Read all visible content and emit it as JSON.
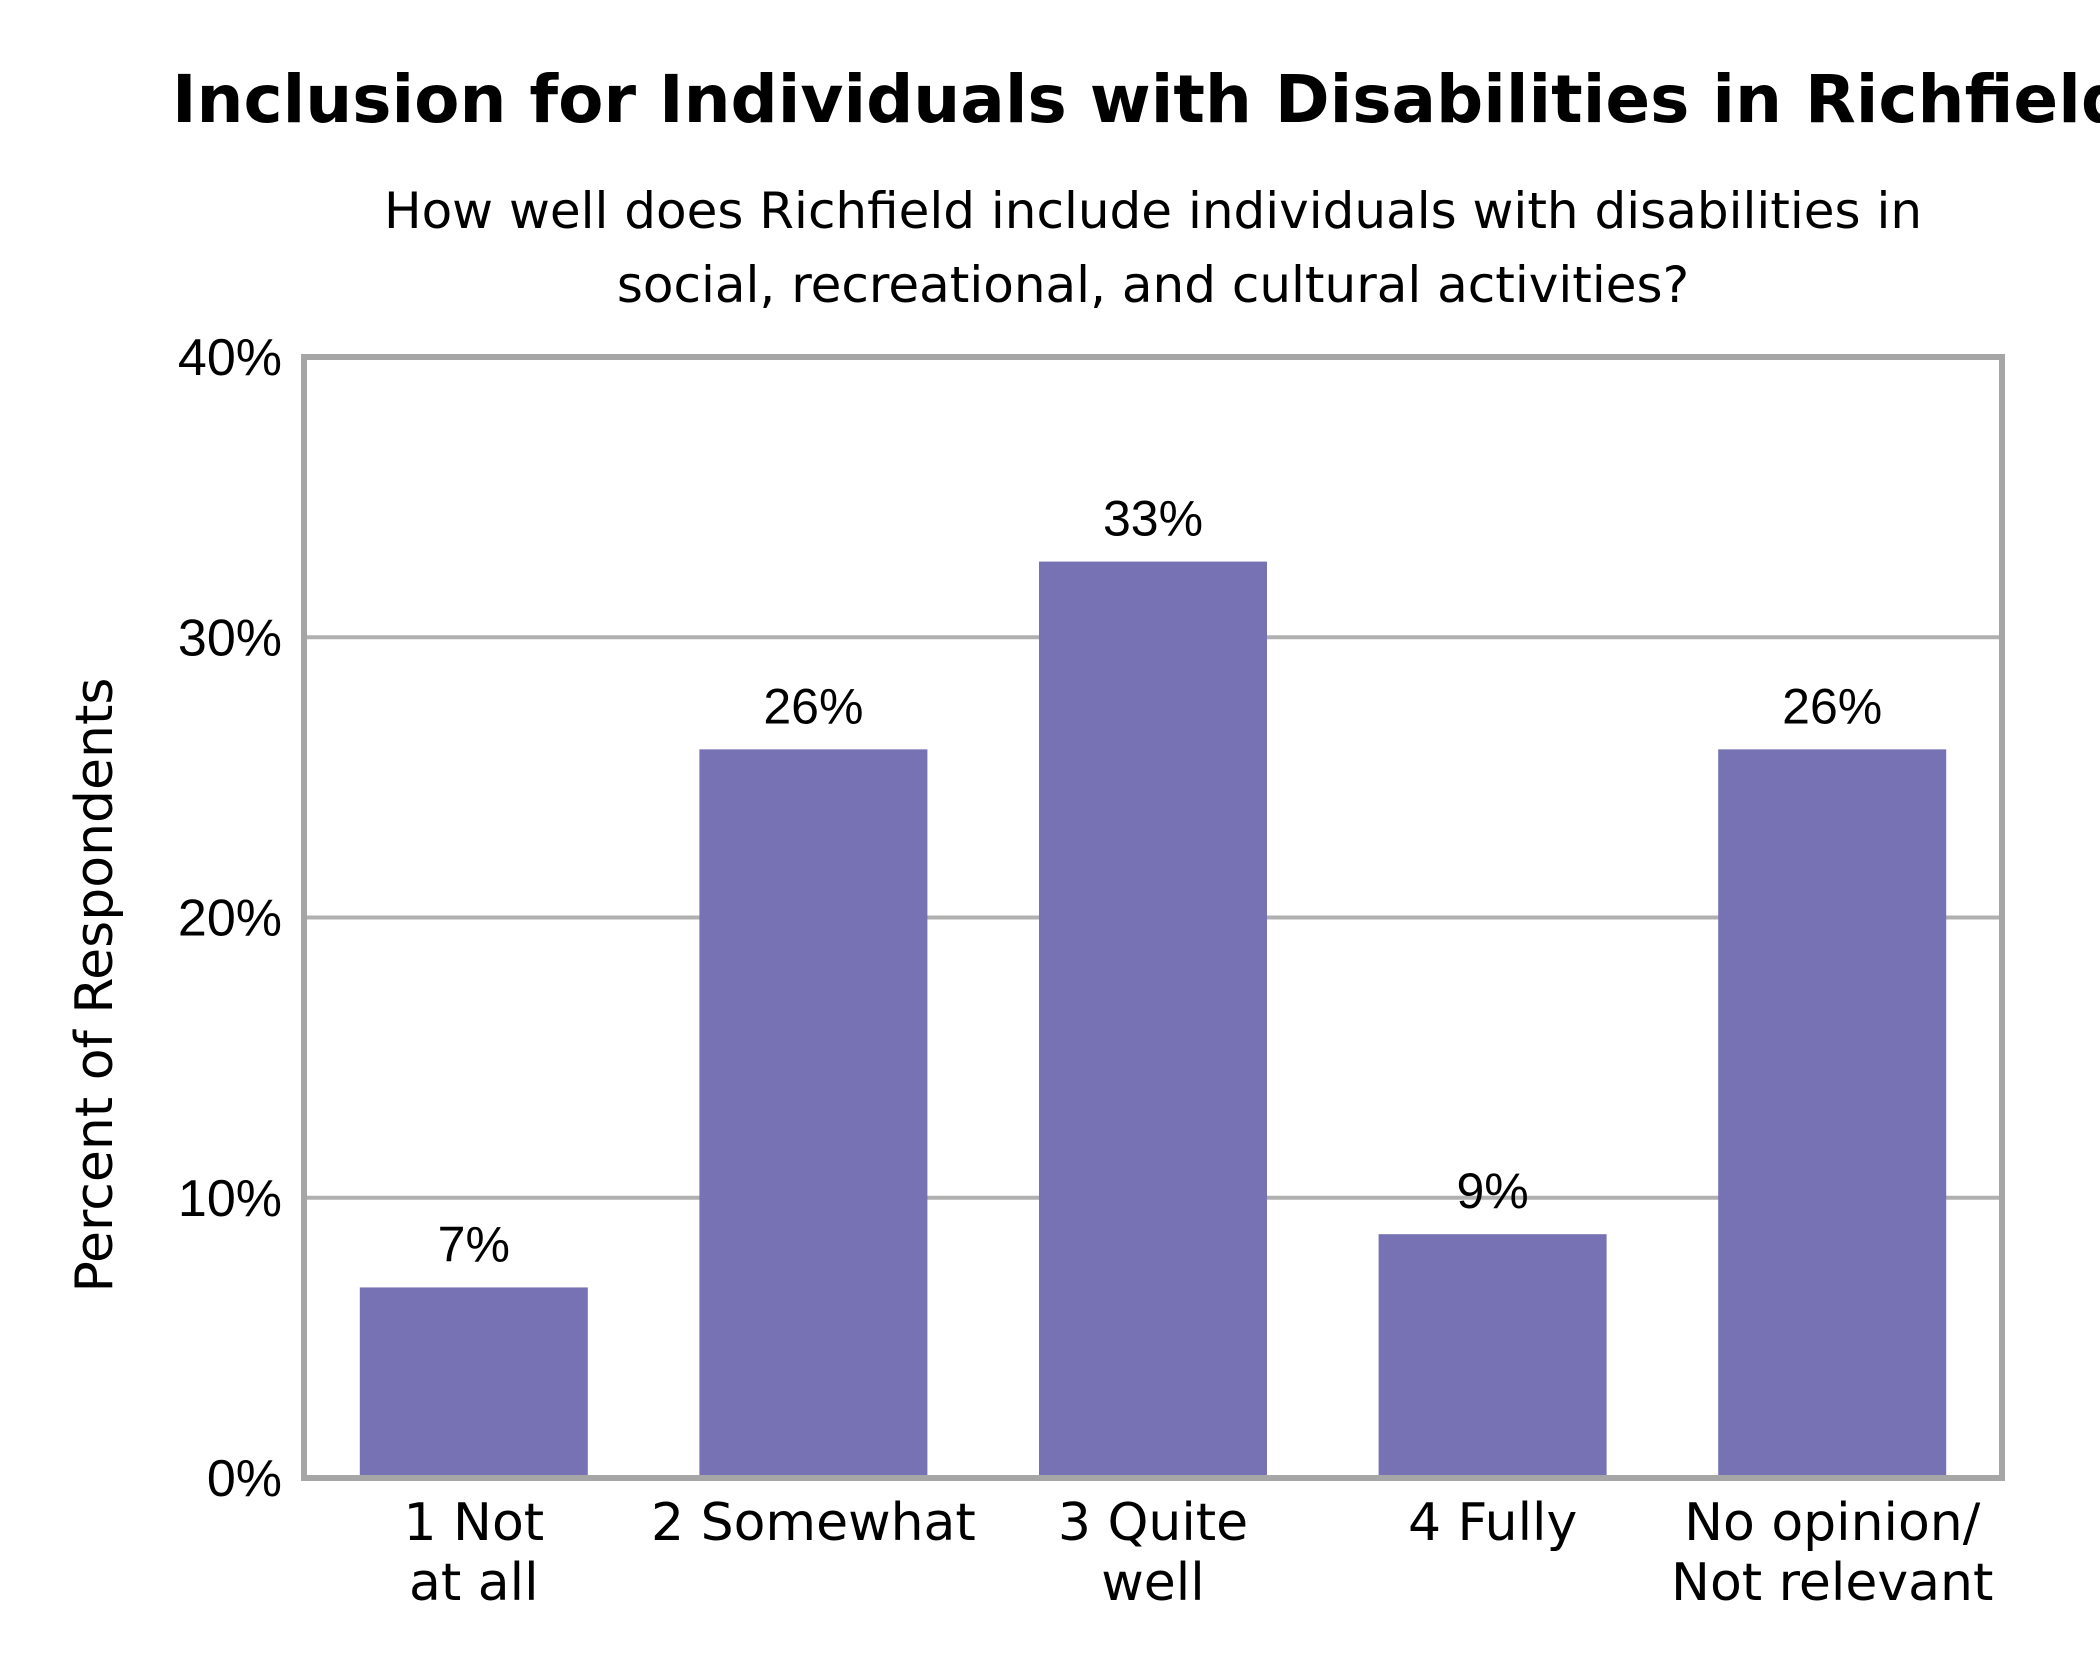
{
  "chart_data": {
    "type": "bar",
    "title": "Inclusion for Individuals with Disabilities in Richfield",
    "subtitle_lines": [
      "How well does Richfield include individuals with disabilities in",
      "social, recreational, and cultural activities?"
    ],
    "xlabel": "",
    "ylabel": "Percent of Respondents",
    "categories": [
      [
        "1 Not",
        "at all"
      ],
      [
        "2 Somewhat"
      ],
      [
        "3 Quite",
        "well"
      ],
      [
        "4 Fully"
      ],
      [
        "No opinion/",
        "Not relevant"
      ]
    ],
    "values": [
      6.8,
      26.0,
      32.7,
      8.7,
      26.0
    ],
    "data_labels": [
      "7%",
      "26%",
      "33%",
      "9%",
      "26%"
    ],
    "ylim": [
      0,
      40
    ],
    "yticks": [
      0,
      10,
      20,
      30,
      40
    ],
    "ytick_labels": [
      "0%",
      "10%",
      "20%",
      "30%",
      "40%"
    ],
    "grid": true,
    "legend": "none",
    "colors": {
      "bar": "#7672b3",
      "grid": "#b0b0b0",
      "frame": "#a6a6a6",
      "text": "#000000"
    }
  }
}
